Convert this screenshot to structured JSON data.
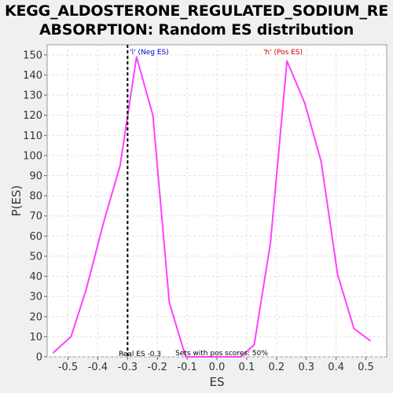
{
  "chart_data": {
    "type": "line",
    "title_line1": "KEGG_ALDOSTERONE_REGULATED_SODIUM_RE",
    "title_line2": "ABSORPTION: Random ES distribution",
    "xlabel": "ES",
    "ylabel": "P(ES)",
    "xlim": [
      -0.57,
      0.57
    ],
    "ylim": [
      0,
      155
    ],
    "x_ticks": [
      -0.5,
      -0.4,
      -0.3,
      -0.2,
      -0.1,
      0.0,
      0.1,
      0.2,
      0.3,
      0.4,
      0.5
    ],
    "x_tick_labels": [
      "-0.5",
      "-0.4",
      "-0.3",
      "-0.2",
      "-0.1",
      "0.0",
      "0.1",
      "0.2",
      "0.3",
      "0.4",
      "0.5"
    ],
    "y_ticks": [
      0,
      10,
      20,
      30,
      40,
      50,
      60,
      70,
      80,
      90,
      100,
      110,
      120,
      130,
      140,
      150
    ],
    "y_tick_labels": [
      "0",
      "10",
      "20",
      "30",
      "40",
      "50",
      "60",
      "70",
      "80",
      "90",
      "100",
      "110",
      "120",
      "130",
      "140",
      "150"
    ],
    "grid": true,
    "series": [
      {
        "color": "#ff40ff",
        "points": [
          [
            -0.55,
            2
          ],
          [
            -0.49,
            10
          ],
          [
            -0.44,
            33
          ],
          [
            -0.38,
            67
          ],
          [
            -0.325,
            95
          ],
          [
            -0.27,
            149
          ],
          [
            -0.215,
            120
          ],
          [
            -0.16,
            27
          ],
          [
            -0.105,
            0
          ],
          [
            -0.05,
            0
          ],
          [
            0.0,
            0
          ],
          [
            0.05,
            0
          ],
          [
            0.08,
            0
          ],
          [
            0.125,
            6
          ],
          [
            0.18,
            57
          ],
          [
            0.235,
            147
          ],
          [
            0.295,
            126
          ],
          [
            0.35,
            97
          ],
          [
            0.405,
            41
          ],
          [
            0.46,
            14
          ],
          [
            0.515,
            8
          ]
        ]
      }
    ],
    "real_es_line": {
      "x": -0.3,
      "color": "#000000",
      "style": "dashed"
    },
    "annotations": {
      "neg_label": "'l' (Neg ES)",
      "neg_color": "#0000cc",
      "pos_label": "'h' (Pos ES)",
      "pos_color": "#cc0000",
      "real_es_text": "Real ES -0.3",
      "sets_text": "Sets with pos scores: 50%"
    },
    "colors": {
      "plot_bg": "#ffffff",
      "grid": "#e0e0e0",
      "page_bg": "#f0f0f0"
    }
  }
}
